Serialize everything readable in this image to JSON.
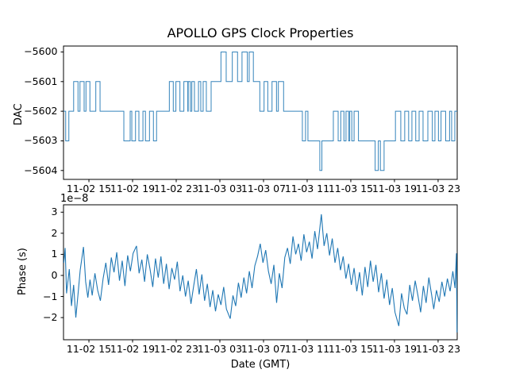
{
  "figure": {
    "background": "#ffffff",
    "line_color": "#1f77b4",
    "axis_color": "#000000"
  },
  "chart_data": [
    {
      "type": "step",
      "title": "APOLLO GPS Clock Properties",
      "ylabel": "DAC",
      "xlabel": "",
      "x_unit": "hours since 11-02 00:00 GMT",
      "xlim": [
        12.67,
        48.75
      ],
      "ylim": [
        -5604.3,
        -5599.8
      ],
      "grid": false,
      "legend": null,
      "yticks": [
        -5600,
        -5601,
        -5602,
        -5603,
        -5604
      ],
      "ytick_labels": [
        "−5600",
        "−5601",
        "−5602",
        "−5603",
        "−5604"
      ],
      "xticks": [
        15,
        19,
        23,
        27,
        31,
        35,
        39,
        43,
        47
      ],
      "xtick_labels": [
        "11-02 15",
        "11-02 19",
        "11-02 23",
        "11-03 03",
        "11-03 07",
        "11-03 11",
        "11-03 15",
        "11-03 19",
        "11-03 23"
      ],
      "steps": [
        [
          12.67,
          -5602
        ],
        [
          12.87,
          -5603
        ],
        [
          13.16,
          -5602
        ],
        [
          13.6,
          -5601
        ],
        [
          14.0,
          -5602
        ],
        [
          14.18,
          -5601
        ],
        [
          14.56,
          -5602
        ],
        [
          14.73,
          -5601
        ],
        [
          15.09,
          -5602
        ],
        [
          15.63,
          -5601
        ],
        [
          16.02,
          -5602
        ],
        [
          18.2,
          -5603
        ],
        [
          18.78,
          -5602
        ],
        [
          18.93,
          -5603
        ],
        [
          19.27,
          -5602
        ],
        [
          19.58,
          -5603
        ],
        [
          19.95,
          -5602
        ],
        [
          20.18,
          -5603
        ],
        [
          20.55,
          -5602
        ],
        [
          20.91,
          -5603
        ],
        [
          21.2,
          -5602
        ],
        [
          22.37,
          -5601
        ],
        [
          22.73,
          -5602
        ],
        [
          22.97,
          -5601
        ],
        [
          23.34,
          -5602
        ],
        [
          23.7,
          -5601
        ],
        [
          24.06,
          -5602
        ],
        [
          24.1,
          -5601
        ],
        [
          24.3,
          -5602
        ],
        [
          24.43,
          -5601
        ],
        [
          24.67,
          -5602
        ],
        [
          25.04,
          -5601
        ],
        [
          25.25,
          -5602
        ],
        [
          25.47,
          -5601
        ],
        [
          25.76,
          -5602
        ],
        [
          26.2,
          -5601
        ],
        [
          27.1,
          -5600
        ],
        [
          27.58,
          -5601
        ],
        [
          28.14,
          -5600
        ],
        [
          28.62,
          -5601
        ],
        [
          29.03,
          -5600
        ],
        [
          29.52,
          -5601
        ],
        [
          29.69,
          -5600
        ],
        [
          30.07,
          -5601
        ],
        [
          30.66,
          -5602
        ],
        [
          31.05,
          -5601
        ],
        [
          31.39,
          -5602
        ],
        [
          31.78,
          -5601
        ],
        [
          32.19,
          -5602
        ],
        [
          32.36,
          -5601
        ],
        [
          32.84,
          -5602
        ],
        [
          34.56,
          -5603
        ],
        [
          34.85,
          -5602
        ],
        [
          35.07,
          -5603
        ],
        [
          36.16,
          -5604
        ],
        [
          36.35,
          -5603
        ],
        [
          37.4,
          -5602
        ],
        [
          37.84,
          -5603
        ],
        [
          38.08,
          -5602
        ],
        [
          38.37,
          -5603
        ],
        [
          38.56,
          -5602
        ],
        [
          38.8,
          -5603
        ],
        [
          38.9,
          -5602
        ],
        [
          39.09,
          -5603
        ],
        [
          39.3,
          -5602
        ],
        [
          39.7,
          -5603
        ],
        [
          41.23,
          -5604
        ],
        [
          41.52,
          -5603
        ],
        [
          41.71,
          -5604
        ],
        [
          42.05,
          -5603
        ],
        [
          43.09,
          -5602
        ],
        [
          43.58,
          -5603
        ],
        [
          43.94,
          -5602
        ],
        [
          44.3,
          -5603
        ],
        [
          44.6,
          -5602
        ],
        [
          44.95,
          -5603
        ],
        [
          45.26,
          -5602
        ],
        [
          45.62,
          -5603
        ],
        [
          46.06,
          -5602
        ],
        [
          46.47,
          -5603
        ],
        [
          46.71,
          -5602
        ],
        [
          47.03,
          -5603
        ],
        [
          47.27,
          -5602
        ],
        [
          47.69,
          -5603
        ],
        [
          48.05,
          -5602
        ],
        [
          48.24,
          -5603
        ],
        [
          48.53,
          -5602
        ]
      ]
    },
    {
      "type": "line",
      "title": "",
      "ylabel": "Phase (s)",
      "xlabel": "Date (GMT)",
      "offset_text": "1e−8",
      "y_scale_factor": 1e-08,
      "x_unit": "hours since 11-02 00:00 GMT",
      "xlim": [
        12.67,
        48.75
      ],
      "ylim": [
        -3.05,
        3.35
      ],
      "grid": false,
      "legend": null,
      "yticks": [
        3,
        2,
        1,
        0,
        -1,
        -2
      ],
      "ytick_labels": [
        "3",
        "2",
        "1",
        "0",
        "−1",
        "−2"
      ],
      "xticks": [
        15,
        19,
        23,
        27,
        31,
        35,
        39,
        43,
        47
      ],
      "xtick_labels": [
        "11-02 15",
        "11-02 19",
        "11-02 23",
        "11-03 03",
        "11-03 07",
        "11-03 11",
        "11-03 15",
        "11-03 19",
        "11-03 23"
      ],
      "points": [
        [
          12.7,
          0.6
        ],
        [
          12.82,
          1.3
        ],
        [
          12.95,
          -0.85
        ],
        [
          13.2,
          0.3
        ],
        [
          13.4,
          -1.45
        ],
        [
          13.6,
          -0.45
        ],
        [
          13.8,
          -2.0
        ],
        [
          14.0,
          -0.9
        ],
        [
          14.2,
          0.25
        ],
        [
          14.5,
          1.35
        ],
        [
          14.7,
          -0.3
        ],
        [
          14.9,
          -1.05
        ],
        [
          15.1,
          -0.2
        ],
        [
          15.3,
          -0.95
        ],
        [
          15.55,
          0.1
        ],
        [
          15.8,
          -0.7
        ],
        [
          16.05,
          -1.2
        ],
        [
          16.3,
          -0.15
        ],
        [
          16.55,
          0.6
        ],
        [
          16.8,
          -0.45
        ],
        [
          17.05,
          0.85
        ],
        [
          17.3,
          0.15
        ],
        [
          17.55,
          1.1
        ],
        [
          17.8,
          -0.25
        ],
        [
          18.05,
          0.7
        ],
        [
          18.3,
          -0.5
        ],
        [
          18.55,
          0.95
        ],
        [
          18.8,
          0.2
        ],
        [
          19.05,
          1.05
        ],
        [
          19.36,
          1.4
        ],
        [
          19.6,
          0.1
        ],
        [
          19.85,
          0.75
        ],
        [
          20.1,
          -0.3
        ],
        [
          20.35,
          1.0
        ],
        [
          20.6,
          0.3
        ],
        [
          20.85,
          -0.55
        ],
        [
          21.1,
          0.8
        ],
        [
          21.35,
          -0.1
        ],
        [
          21.6,
          0.9
        ],
        [
          21.85,
          -0.4
        ],
        [
          22.1,
          0.55
        ],
        [
          22.35,
          -0.65
        ],
        [
          22.6,
          0.35
        ],
        [
          22.85,
          -0.2
        ],
        [
          23.1,
          0.65
        ],
        [
          23.35,
          -0.75
        ],
        [
          23.6,
          0.0
        ],
        [
          23.85,
          -1.0
        ],
        [
          24.1,
          -0.25
        ],
        [
          24.35,
          -1.35
        ],
        [
          24.6,
          -0.5
        ],
        [
          24.85,
          0.3
        ],
        [
          25.1,
          -0.9
        ],
        [
          25.35,
          0.05
        ],
        [
          25.6,
          -1.2
        ],
        [
          25.85,
          -0.4
        ],
        [
          26.1,
          -1.5
        ],
        [
          26.35,
          -0.7
        ],
        [
          26.6,
          -1.7
        ],
        [
          26.85,
          -0.9
        ],
        [
          27.1,
          -1.4
        ],
        [
          27.35,
          -0.55
        ],
        [
          27.6,
          -1.6
        ],
        [
          27.95,
          -2.05
        ],
        [
          28.2,
          -0.95
        ],
        [
          28.45,
          -1.45
        ],
        [
          28.7,
          -0.35
        ],
        [
          28.95,
          -1.05
        ],
        [
          29.2,
          -0.1
        ],
        [
          29.45,
          -0.85
        ],
        [
          29.7,
          0.2
        ],
        [
          29.95,
          -0.6
        ],
        [
          30.2,
          0.45
        ],
        [
          30.45,
          0.9
        ],
        [
          30.7,
          1.5
        ],
        [
          30.95,
          0.6
        ],
        [
          31.2,
          1.2
        ],
        [
          31.45,
          0.2
        ],
        [
          31.7,
          -0.4
        ],
        [
          31.95,
          0.5
        ],
        [
          32.2,
          -1.3
        ],
        [
          32.45,
          0.1
        ],
        [
          32.7,
          -0.6
        ],
        [
          32.95,
          0.85
        ],
        [
          33.2,
          1.3
        ],
        [
          33.45,
          0.55
        ],
        [
          33.7,
          1.85
        ],
        [
          33.95,
          1.0
        ],
        [
          34.2,
          1.5
        ],
        [
          34.45,
          0.7
        ],
        [
          34.7,
          1.95
        ],
        [
          34.95,
          1.1
        ],
        [
          35.2,
          1.6
        ],
        [
          35.45,
          0.8
        ],
        [
          35.7,
          2.1
        ],
        [
          35.95,
          1.25
        ],
        [
          36.3,
          2.9
        ],
        [
          36.55,
          1.4
        ],
        [
          36.8,
          2.0
        ],
        [
          37.05,
          0.95
        ],
        [
          37.3,
          1.75
        ],
        [
          37.55,
          0.6
        ],
        [
          37.8,
          1.3
        ],
        [
          38.05,
          0.25
        ],
        [
          38.3,
          0.9
        ],
        [
          38.55,
          -0.15
        ],
        [
          38.8,
          0.55
        ],
        [
          39.05,
          -0.45
        ],
        [
          39.3,
          0.35
        ],
        [
          39.55,
          -0.75
        ],
        [
          39.8,
          0.15
        ],
        [
          40.05,
          -0.95
        ],
        [
          40.3,
          0.4
        ],
        [
          40.55,
          -0.55
        ],
        [
          40.8,
          0.7
        ],
        [
          41.05,
          -0.3
        ],
        [
          41.3,
          0.5
        ],
        [
          41.55,
          -0.8
        ],
        [
          41.8,
          0.1
        ],
        [
          42.05,
          -1.1
        ],
        [
          42.3,
          -0.2
        ],
        [
          42.55,
          -1.4
        ],
        [
          42.8,
          -0.6
        ],
        [
          43.05,
          -1.75
        ],
        [
          43.4,
          -2.4
        ],
        [
          43.65,
          -0.85
        ],
        [
          43.9,
          -1.55
        ],
        [
          44.15,
          -1.85
        ],
        [
          44.4,
          -0.45
        ],
        [
          44.65,
          -1.2
        ],
        [
          44.9,
          -0.25
        ],
        [
          45.15,
          -0.95
        ],
        [
          45.4,
          -1.75
        ],
        [
          45.65,
          -0.5
        ],
        [
          45.9,
          -1.3
        ],
        [
          46.15,
          -0.1
        ],
        [
          46.4,
          -0.9
        ],
        [
          46.6,
          -1.6
        ],
        [
          46.85,
          -0.7
        ],
        [
          47.1,
          -1.25
        ],
        [
          47.35,
          -0.3
        ],
        [
          47.6,
          -1.0
        ],
        [
          47.85,
          -0.15
        ],
        [
          48.1,
          -0.75
        ],
        [
          48.35,
          0.2
        ],
        [
          48.55,
          -0.6
        ],
        [
          48.68,
          1.05
        ],
        [
          48.73,
          -2.7
        ]
      ]
    }
  ]
}
